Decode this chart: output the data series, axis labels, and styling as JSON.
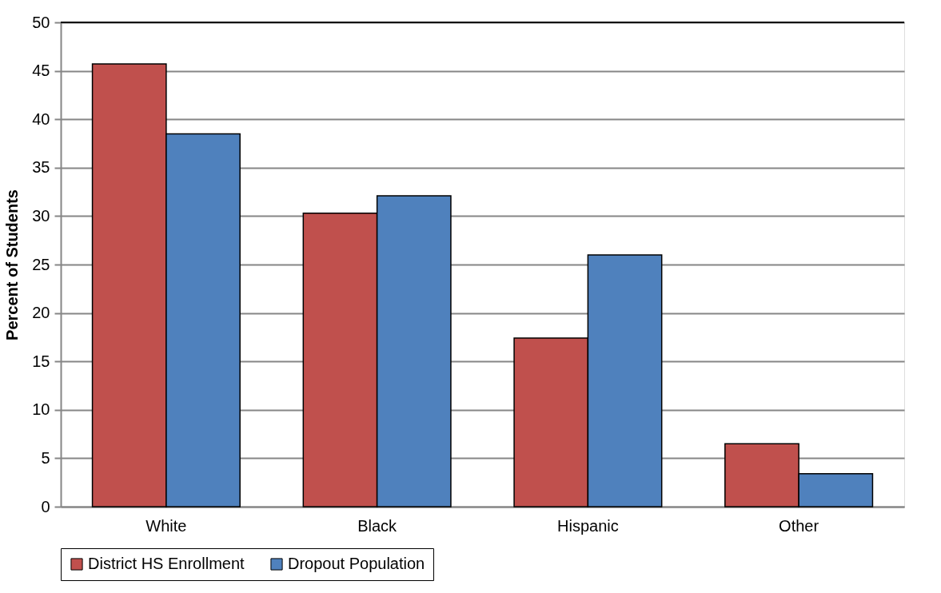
{
  "chart_data": {
    "type": "bar",
    "ylabel": "Percent of Students",
    "categories": [
      "White",
      "Black",
      "Hispanic",
      "Other"
    ],
    "series": [
      {
        "name": "District HS Enrollment",
        "color": "#c0504d",
        "values": [
          45.7,
          30.3,
          17.4,
          6.5
        ]
      },
      {
        "name": "Dropout Population",
        "color": "#4f81bd",
        "values": [
          38.5,
          32.1,
          26.0,
          3.4
        ]
      }
    ],
    "ylim": [
      0,
      50
    ],
    "yticks": [
      0,
      5,
      10,
      15,
      20,
      25,
      30,
      35,
      40,
      45,
      50
    ],
    "grid": "y",
    "legend": "bottom"
  }
}
